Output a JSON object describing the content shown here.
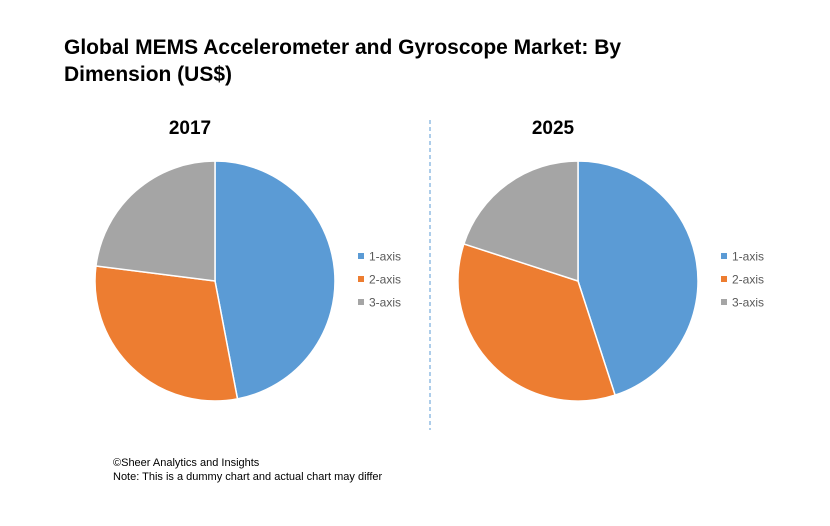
{
  "title": "Global MEMS Accelerometer and Gyroscope Market: By Dimension (US$)",
  "chart_data": [
    {
      "type": "pie",
      "title": "2017",
      "categories": [
        "1-axis",
        "2-axis",
        "3-axis"
      ],
      "values": [
        47,
        30,
        23
      ],
      "colors": [
        "#5B9BD5",
        "#ED7D31",
        "#A5A5A5"
      ],
      "legend_position": "right"
    },
    {
      "type": "pie",
      "title": "2025",
      "categories": [
        "1-axis",
        "2-axis",
        "3-axis"
      ],
      "values": [
        45,
        35,
        20
      ],
      "colors": [
        "#5B9BD5",
        "#ED7D31",
        "#A5A5A5"
      ],
      "legend_position": "right"
    }
  ],
  "footer": {
    "copyright": "©Sheer Analytics and Insights",
    "note": "Note: This is a dummy chart and actual chart may differ"
  }
}
